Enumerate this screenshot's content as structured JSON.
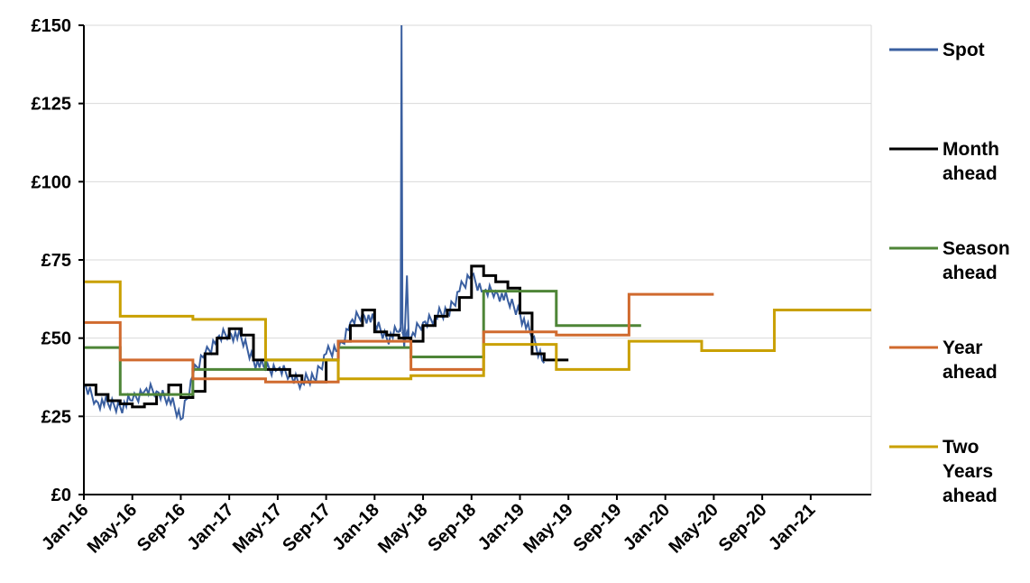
{
  "chart_data": {
    "type": "line",
    "title": "",
    "xlabel": "",
    "ylabel": "",
    "ylim": [
      0,
      150
    ],
    "y_ticks": [
      0,
      25,
      50,
      75,
      100,
      125,
      150
    ],
    "y_tick_labels": [
      "£0",
      "£25",
      "£50",
      "£75",
      "£100",
      "£125",
      "£150"
    ],
    "x_range": [
      "2016-01",
      "2021-06"
    ],
    "x_ticks": [
      "2016-01",
      "2016-05",
      "2016-09",
      "2017-01",
      "2017-05",
      "2017-09",
      "2018-01",
      "2018-05",
      "2018-09",
      "2019-01",
      "2019-05",
      "2019-09",
      "2020-01",
      "2020-05",
      "2020-09",
      "2021-01"
    ],
    "x_tick_labels": [
      "Jan-16",
      "May-16",
      "Sep-16",
      "Jan-17",
      "May-17",
      "Sep-17",
      "Jan-18",
      "May-18",
      "Sep-18",
      "Jan-19",
      "May-19",
      "Sep-19",
      "Jan-20",
      "May-20",
      "Sep-20",
      "Jan-21"
    ],
    "grid": "horizontal",
    "legend_position": "right",
    "series": [
      {
        "name": "Spot",
        "color": "#3A5FA0",
        "style": "line",
        "points": [
          [
            "2016-01",
            35
          ],
          [
            "2016-02",
            30
          ],
          [
            "2016-03",
            29
          ],
          [
            "2016-04",
            28
          ],
          [
            "2016-05",
            30
          ],
          [
            "2016-06",
            33
          ],
          [
            "2016-07",
            33
          ],
          [
            "2016-08",
            31
          ],
          [
            "2016-09",
            24
          ],
          [
            "2016-10",
            38
          ],
          [
            "2016-11",
            45
          ],
          [
            "2016-12",
            50
          ],
          [
            "2017-01",
            52
          ],
          [
            "2017-02",
            50
          ],
          [
            "2017-03",
            43
          ],
          [
            "2017-04",
            40
          ],
          [
            "2017-05",
            40
          ],
          [
            "2017-06",
            38
          ],
          [
            "2017-07",
            36
          ],
          [
            "2017-08",
            37
          ],
          [
            "2017-09",
            45
          ],
          [
            "2017-10",
            46
          ],
          [
            "2017-11",
            55
          ],
          [
            "2017-12",
            58
          ],
          [
            "2018-01",
            55
          ],
          [
            "2018-02",
            50
          ],
          [
            "2018-03",
            52
          ],
          [
            "2018-04",
            50
          ],
          [
            "2018-05",
            55
          ],
          [
            "2018-06",
            57
          ],
          [
            "2018-07",
            58
          ],
          [
            "2018-08",
            65
          ],
          [
            "2018-09",
            70
          ],
          [
            "2018-10",
            65
          ],
          [
            "2018-11",
            65
          ],
          [
            "2018-12",
            62
          ],
          [
            "2019-01",
            58
          ],
          [
            "2019-02",
            50
          ],
          [
            "2019-03",
            42
          ]
        ],
        "spike": {
          "date": "2018-03",
          "value": 150
        }
      },
      {
        "name": "Month ahead",
        "color": "#000000",
        "style": "step",
        "points": [
          [
            "2016-01",
            35
          ],
          [
            "2016-02",
            32
          ],
          [
            "2016-03",
            30
          ],
          [
            "2016-04",
            29
          ],
          [
            "2016-05",
            28
          ],
          [
            "2016-06",
            29
          ],
          [
            "2016-07",
            32
          ],
          [
            "2016-08",
            35
          ],
          [
            "2016-09",
            31
          ],
          [
            "2016-10",
            33
          ],
          [
            "2016-11",
            45
          ],
          [
            "2016-12",
            50
          ],
          [
            "2017-01",
            53
          ],
          [
            "2017-02",
            51
          ],
          [
            "2017-03",
            43
          ],
          [
            "2017-04",
            40
          ],
          [
            "2017-05",
            40
          ],
          [
            "2017-06",
            38
          ],
          [
            "2017-07",
            36
          ],
          [
            "2017-08",
            36
          ],
          [
            "2017-09",
            43
          ],
          [
            "2017-10",
            49
          ],
          [
            "2017-11",
            54
          ],
          [
            "2017-12",
            59
          ],
          [
            "2018-01",
            52
          ],
          [
            "2018-02",
            51
          ],
          [
            "2018-03",
            50
          ],
          [
            "2018-04",
            49
          ],
          [
            "2018-05",
            54
          ],
          [
            "2018-06",
            57
          ],
          [
            "2018-07",
            59
          ],
          [
            "2018-08",
            63
          ],
          [
            "2018-09",
            73
          ],
          [
            "2018-10",
            70
          ],
          [
            "2018-11",
            68
          ],
          [
            "2018-12",
            66
          ],
          [
            "2019-01",
            58
          ],
          [
            "2019-02",
            45
          ],
          [
            "2019-03",
            43
          ],
          [
            "2019-04",
            43
          ]
        ]
      },
      {
        "name": "Season ahead",
        "color": "#4E8537",
        "style": "step",
        "points": [
          [
            "2016-01",
            47
          ],
          [
            "2016-04",
            32
          ],
          [
            "2016-10",
            40
          ],
          [
            "2017-04",
            43
          ],
          [
            "2017-10",
            47
          ],
          [
            "2018-04",
            44
          ],
          [
            "2018-10",
            65
          ],
          [
            "2019-04",
            54
          ],
          [
            "2019-10",
            54
          ]
        ]
      },
      {
        "name": "Year ahead",
        "color": "#D06A2E",
        "style": "step",
        "points": [
          [
            "2016-01",
            55
          ],
          [
            "2016-04",
            43
          ],
          [
            "2016-10",
            37
          ],
          [
            "2017-04",
            36
          ],
          [
            "2017-10",
            49
          ],
          [
            "2018-04",
            40
          ],
          [
            "2018-10",
            52
          ],
          [
            "2019-04",
            51
          ],
          [
            "2019-10",
            64
          ],
          [
            "2020-04",
            64
          ]
        ]
      },
      {
        "name": "Two Years ahead",
        "color": "#C9A000",
        "style": "step",
        "points": [
          [
            "2016-01",
            68
          ],
          [
            "2016-04",
            57
          ],
          [
            "2016-10",
            56
          ],
          [
            "2017-04",
            43
          ],
          [
            "2017-10",
            37
          ],
          [
            "2018-04",
            38
          ],
          [
            "2018-10",
            48
          ],
          [
            "2019-04",
            40
          ],
          [
            "2019-10",
            49
          ],
          [
            "2020-04",
            46
          ],
          [
            "2020-10",
            59
          ],
          [
            "2021-06",
            59
          ]
        ]
      }
    ],
    "legend": [
      {
        "label_lines": [
          "Spot"
        ],
        "color": "#3A5FA0"
      },
      {
        "label_lines": [
          "Month",
          "ahead"
        ],
        "color": "#000000"
      },
      {
        "label_lines": [
          "Season",
          "ahead"
        ],
        "color": "#4E8537"
      },
      {
        "label_lines": [
          "Year",
          "ahead"
        ],
        "color": "#D06A2E"
      },
      {
        "label_lines": [
          "Two",
          "Years",
          "ahead"
        ],
        "color": "#C9A000"
      }
    ]
  }
}
